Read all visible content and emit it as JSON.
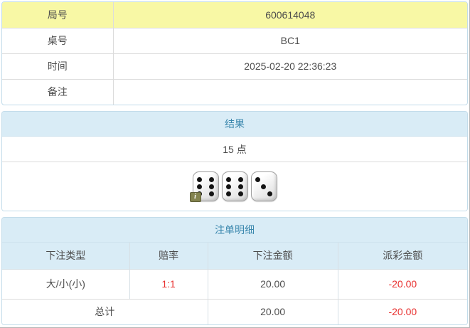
{
  "info_table": {
    "rows": [
      {
        "label": "局号",
        "value": "600614048"
      },
      {
        "label": "桌号",
        "value": "BC1"
      },
      {
        "label": "时间",
        "value": "2025-02-20 22:36:23"
      },
      {
        "label": "备注",
        "value": ""
      }
    ]
  },
  "result_panel": {
    "title": "结果",
    "points": "15 点",
    "dice": [
      6,
      6,
      3
    ],
    "info_badge": "i"
  },
  "bets_panel": {
    "title": "注单明细",
    "columns": [
      "下注类型",
      "赔率",
      "下注金额",
      "派彩金额"
    ],
    "rows": [
      {
        "type": "大/小(小)",
        "odds": "1:1",
        "bet": "20.00",
        "payout": "-20.00"
      }
    ],
    "total_label": "总计",
    "total_bet": "20.00",
    "total_payout": "-20.00"
  },
  "colors": {
    "highlight_yellow": "#f8f8a5",
    "header_bg": "#d9ecf6",
    "header_text": "#3a87ad",
    "negative_red": "#e8302f",
    "panel_border": "#c2dcea"
  }
}
